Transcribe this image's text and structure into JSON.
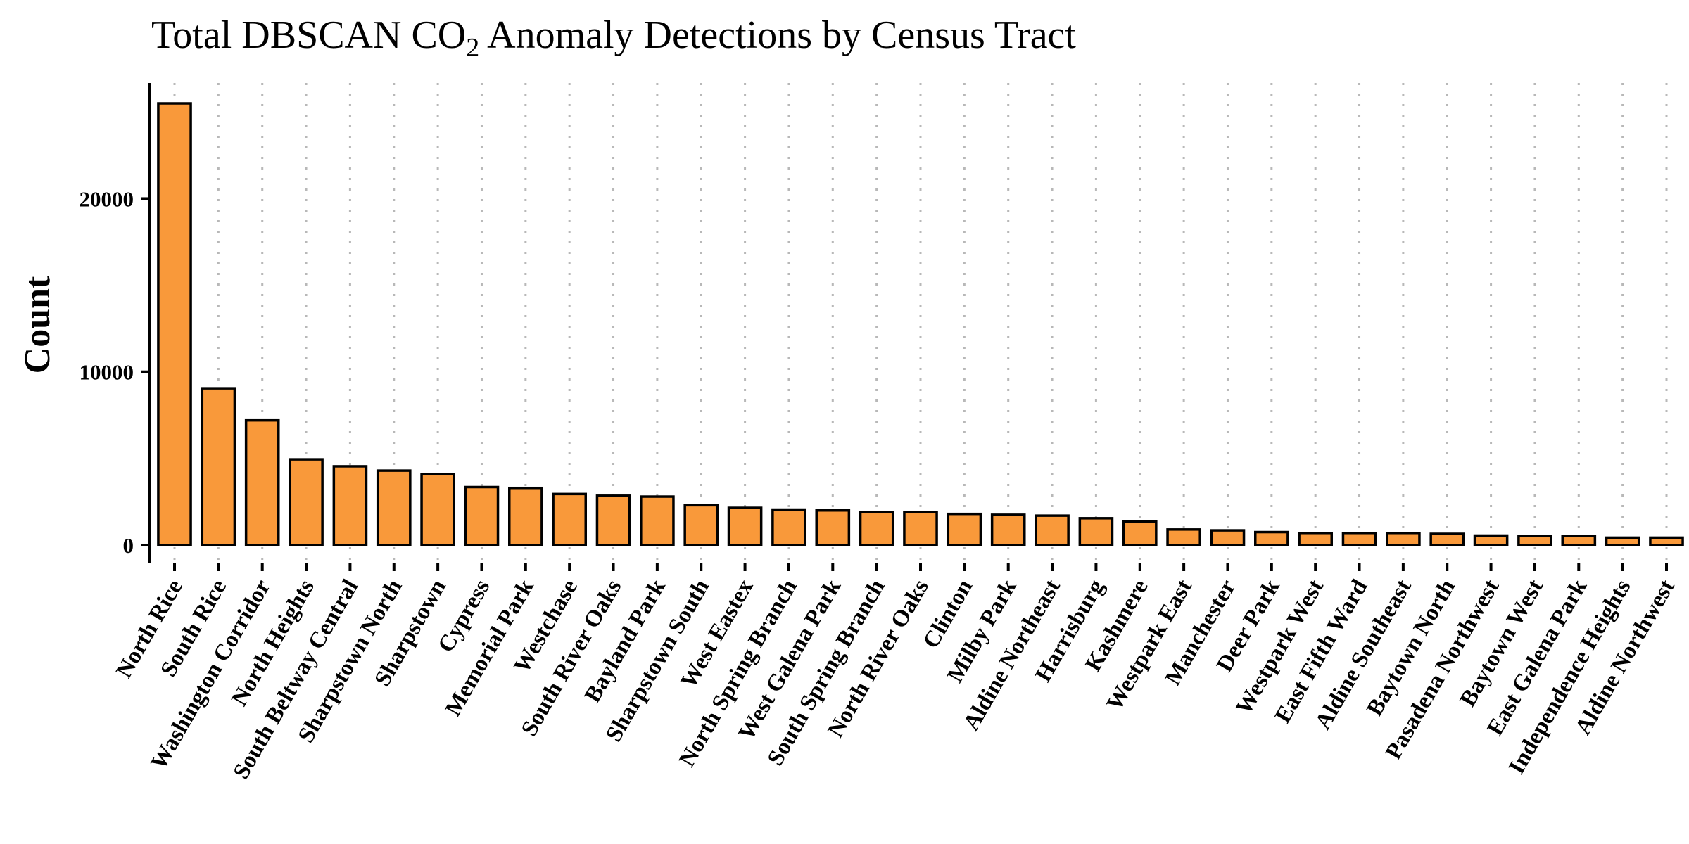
{
  "chart_data": {
    "type": "bar",
    "title": "Total DBSCAN CO",
    "title_subscript": "2",
    "title_suffix": " Anomaly Detections by Census Tract",
    "xlabel": "",
    "ylabel": "Count",
    "ylim": [
      0,
      26500
    ],
    "yticks": [
      0,
      10000,
      20000
    ],
    "grid": "vertical dotted",
    "bar_color": "#F9993A",
    "bar_edge_color": "#000000",
    "categories": [
      "North Rice",
      "South Rice",
      "Washington Corridor",
      "North Heights",
      "South Beltway Central",
      "Sharpstown North",
      "Sharpstown",
      "Cypress",
      "Memorial Park",
      "Westchase",
      "South River Oaks",
      "Bayland Park",
      "Sharpstown South",
      "West Eastex",
      "North Spring Branch",
      "West Galena Park",
      "South Spring Branch",
      "North River Oaks",
      "Clinton",
      "Milby Park",
      "Aldine Northeast",
      "Harrisburg",
      "Kashmere",
      "Westpark East",
      "Manchester",
      "Deer Park",
      "Westpark West",
      "East Fifth Ward",
      "Aldine Southeast",
      "Baytown North",
      "Pasadena Northwest",
      "Baytown West",
      "East Galena Park",
      "Independence Heights",
      "Aldine Northwest"
    ],
    "values": [
      25500,
      9050,
      7200,
      4950,
      4550,
      4300,
      4100,
      3350,
      3300,
      2950,
      2850,
      2800,
      2300,
      2150,
      2050,
      2000,
      1900,
      1900,
      1800,
      1750,
      1700,
      1550,
      1350,
      900,
      850,
      750,
      700,
      700,
      700,
      650,
      550,
      520,
      520,
      430,
      430
    ]
  }
}
